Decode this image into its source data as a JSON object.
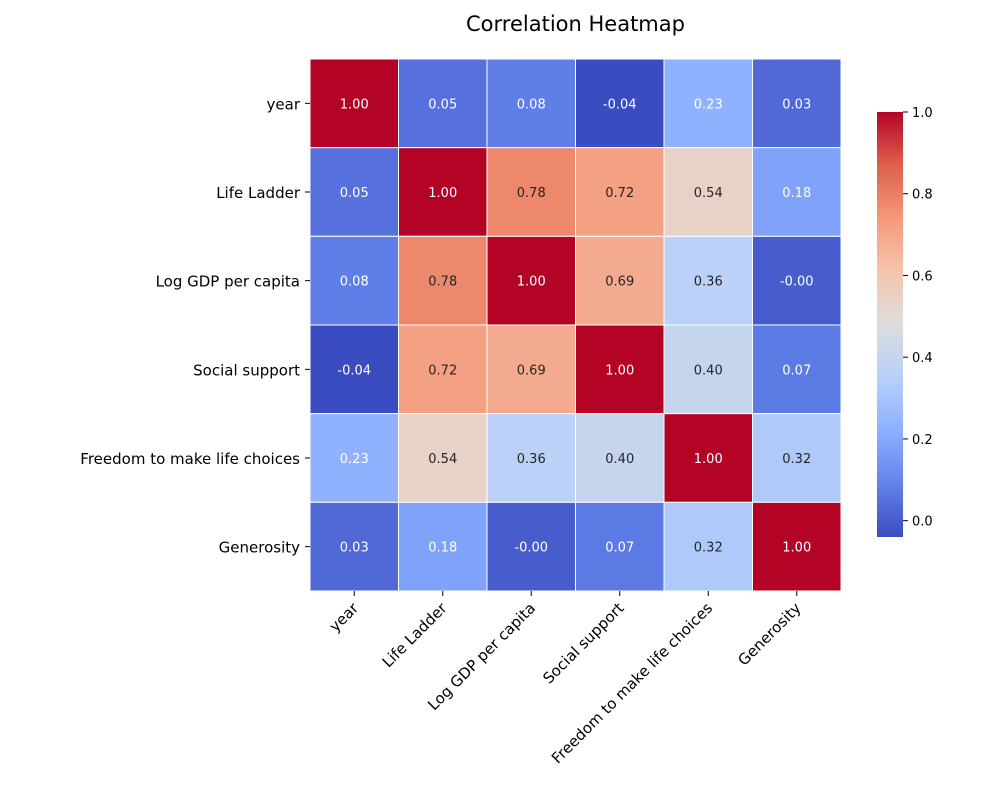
{
  "chart_data": {
    "type": "heatmap",
    "title": "Correlation Heatmap",
    "xlabel": "",
    "ylabel": "",
    "x_categories": [
      "year",
      "Life Ladder",
      "Log GDP per capita",
      "Social support",
      "Freedom to make life choices",
      "Generosity"
    ],
    "y_categories": [
      "year",
      "Life Ladder",
      "Log GDP per capita",
      "Social support",
      "Freedom to make life choices",
      "Generosity"
    ],
    "values": [
      [
        1.0,
        0.05,
        0.08,
        -0.04,
        0.23,
        0.03
      ],
      [
        0.05,
        1.0,
        0.78,
        0.72,
        0.54,
        0.18
      ],
      [
        0.08,
        0.78,
        1.0,
        0.69,
        0.36,
        -0.0
      ],
      [
        -0.04,
        0.72,
        0.69,
        1.0,
        0.4,
        0.07
      ],
      [
        0.23,
        0.54,
        0.36,
        0.4,
        1.0,
        0.32
      ],
      [
        0.03,
        0.18,
        -0.0,
        0.07,
        0.32,
        1.0
      ]
    ],
    "annotation_format": "2 decimals",
    "colormap": "coolwarm",
    "color_range": [
      -0.04,
      1.0
    ],
    "colorbar": {
      "ticks": [
        0.0,
        0.2,
        0.4,
        0.6,
        0.8,
        1.0
      ],
      "tick_labels": [
        "0.0",
        "0.2",
        "0.4",
        "0.6",
        "0.8",
        "1.0"
      ],
      "placement": "right"
    },
    "grid": false,
    "cell_border_color": "#ffffff"
  }
}
